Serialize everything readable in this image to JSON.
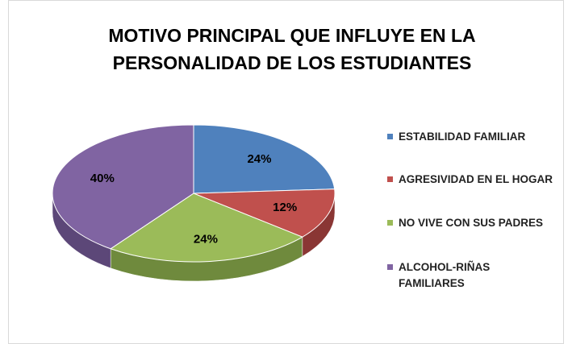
{
  "chart_data": {
    "type": "pie3d",
    "title": [
      "MOTIVO PRINCIPAL QUE INFLUYE EN LA",
      "PERSONALIDAD DE LOS ESTUDIANTES"
    ],
    "categories": [
      "ESTABILIDAD FAMILIAR",
      "AGRESIVIDAD EN EL HOGAR",
      "NO VIVE CON SUS PADRES",
      "ALCOHOL-RIÑAS FAMILIARES"
    ],
    "values": [
      24,
      12,
      24,
      40
    ],
    "value_labels": [
      "24%",
      "12%",
      "24%",
      "40%"
    ],
    "colors": [
      "#4f81bd",
      "#c0504d",
      "#9bbb59",
      "#8064a2"
    ],
    "side_colors": [
      "#3a5f8c",
      "#8a3634",
      "#6f8a3d",
      "#5c4778"
    ],
    "legend": "right"
  }
}
